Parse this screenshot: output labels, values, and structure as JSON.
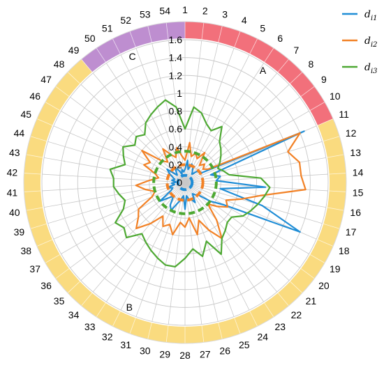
{
  "chart_data": {
    "type": "radar",
    "categories": [
      "1",
      "2",
      "3",
      "4",
      "5",
      "6",
      "7",
      "8",
      "9",
      "10",
      "11",
      "12",
      "13",
      "14",
      "15",
      "16",
      "17",
      "18",
      "19",
      "20",
      "21",
      "22",
      "23",
      "24",
      "25",
      "26",
      "27",
      "28",
      "29",
      "30",
      "31",
      "32",
      "33",
      "34",
      "35",
      "36",
      "37",
      "38",
      "39",
      "40",
      "41",
      "42",
      "43",
      "44",
      "45",
      "46",
      "47",
      "48",
      "49",
      "50",
      "51",
      "52",
      "53",
      "54"
    ],
    "rlim": [
      0,
      1.6
    ],
    "rticks": [
      0,
      0.2,
      0.4,
      0.6,
      0.8,
      1,
      1.2,
      1.4,
      1.6
    ],
    "rtick_labels": [
      "0",
      "0.2",
      "0.4",
      "0.6",
      "0.8",
      "1",
      "1.2",
      "1.4",
      "1.6"
    ],
    "grid": true,
    "legend_position": "top-right",
    "bands": [
      {
        "label": "A",
        "from": 1,
        "to": 11,
        "color": "#F2707B"
      },
      {
        "label": "B",
        "from": 11,
        "to": 49,
        "color": "#FADB7F"
      },
      {
        "label": "C",
        "from": 49,
        "to": 1,
        "color": "#BE8ED0"
      }
    ],
    "series": [
      {
        "name": "d",
        "subscript": "i1",
        "color": "#1F8DD6",
        "values": [
          0.15,
          0.25,
          0.15,
          0.22,
          0.2,
          0.15,
          0.12,
          0.18,
          0.2,
          0.22,
          1.45,
          0.3,
          0.4,
          0.35,
          0.9,
          0.4,
          0.9,
          1.4,
          0.5,
          0.35,
          0.2,
          0.18,
          0.15,
          0.25,
          0.2,
          0.2,
          0.15,
          0.3,
          0.15,
          0.2,
          0.25,
          0.35,
          0.3,
          0.2,
          0.25,
          0.35,
          0.18,
          0.15,
          0.2,
          0.12,
          0.15,
          0.1,
          0.15,
          0.12,
          0.15,
          0.2,
          0.25,
          0.12,
          0.15,
          0.2,
          0.15,
          0.1,
          0.15,
          0.12
        ],
        "baseline": 0.08
      },
      {
        "name": "d",
        "subscript": "i2",
        "color": "#F28125",
        "values": [
          0.25,
          0.45,
          0.3,
          0.35,
          0.3,
          0.4,
          0.25,
          0.3,
          0.25,
          0.3,
          1.4,
          1.2,
          1.3,
          1.3,
          1.35,
          0.85,
          0.65,
          0.5,
          0.55,
          0.45,
          0.35,
          0.55,
          0.75,
          0.6,
          0.45,
          0.6,
          0.4,
          0.5,
          0.45,
          0.6,
          0.5,
          0.55,
          0.45,
          0.6,
          0.75,
          0.65,
          0.6,
          0.4,
          0.35,
          0.45,
          0.55,
          0.4,
          0.3,
          0.35,
          0.5,
          0.45,
          0.6,
          0.35,
          0.3,
          0.45,
          0.35,
          0.3,
          0.4,
          0.3
        ],
        "baseline": 0.2
      },
      {
        "name": "d",
        "subscript": "i3",
        "color": "#4DA832",
        "values": [
          0.6,
          0.85,
          0.8,
          0.7,
          0.65,
          0.75,
          0.6,
          0.55,
          0.5,
          0.45,
          0.4,
          0.45,
          0.5,
          0.85,
          0.95,
          0.9,
          0.85,
          0.8,
          0.75,
          0.65,
          0.65,
          0.7,
          0.75,
          0.9,
          0.7,
          0.85,
          0.75,
          0.85,
          0.95,
          0.95,
          0.9,
          0.85,
          0.8,
          0.75,
          0.9,
          0.85,
          0.9,
          0.75,
          0.7,
          0.75,
          0.8,
          0.8,
          0.85,
          0.7,
          0.75,
          0.8,
          0.7,
          0.75,
          0.7,
          0.8,
          0.85,
          0.9,
          0.95,
          0.85
        ],
        "baseline": 0.35
      }
    ]
  }
}
